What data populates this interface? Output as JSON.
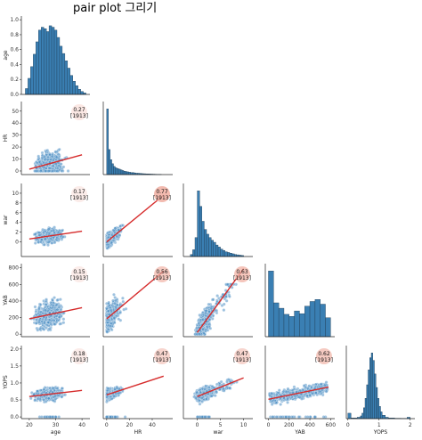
{
  "title": "pair plot 그리기",
  "colors": {
    "hist_fill": "#3a7fb3",
    "hist_edge": "#1e3c55",
    "point": "#4e8fc4",
    "point_edge": "#ffffff",
    "regline": "#d62b2b",
    "badge": "#f1b3a6",
    "spine": "#222222"
  },
  "chart_data": {
    "type": "scatter",
    "kind": "pairplot-lower",
    "variables": [
      "age",
      "HR",
      "war",
      "YAB",
      "YOPS"
    ],
    "axis_labels": [
      "age",
      "HR",
      "war",
      "YAB",
      "YOPS"
    ],
    "x_ranges": [
      [
        17,
        43
      ],
      [
        -3,
        58
      ],
      [
        -3,
        12
      ],
      [
        -30,
        640
      ],
      [
        -0.05,
        2.15
      ]
    ],
    "y_ranges": [
      [
        0,
        1.05
      ],
      [
        -3,
        58
      ],
      [
        -3,
        12
      ],
      [
        -30,
        850
      ],
      [
        -0.05,
        2.1
      ]
    ],
    "x_ticks": [
      [
        20,
        30,
        40
      ],
      [
        0,
        20,
        40
      ],
      [
        0,
        5,
        10
      ],
      [
        0,
        200,
        400,
        600
      ],
      [
        0,
        1,
        2
      ]
    ],
    "y_ticks": [
      [
        0.0,
        0.2,
        0.4,
        0.6,
        0.8,
        1.0
      ],
      [
        0,
        10,
        20,
        30,
        40,
        50
      ],
      [
        0,
        2,
        4,
        6,
        8,
        10
      ],
      [
        0,
        200,
        400,
        600,
        800
      ],
      [
        0.0,
        0.5,
        1.0,
        1.5,
        2.0
      ]
    ],
    "y_tick_labels": [
      [
        "0.0",
        "0.2",
        "0.4",
        "0.6",
        "0.8",
        "1.0"
      ],
      [
        "0",
        "10",
        "20",
        "30",
        "40",
        "50"
      ],
      [
        "0",
        "2",
        "4",
        "6",
        "8",
        "10"
      ],
      [
        "0",
        "200",
        "400",
        "600",
        "800"
      ],
      [
        "0.0",
        "0.5",
        "1.0",
        "1.5",
        "2.0"
      ]
    ],
    "histograms": [
      {
        "var": "age",
        "bins": [
          18.5,
          19.5,
          20.5,
          21.5,
          22.5,
          23.5,
          24.5,
          25.5,
          26.5,
          27.5,
          28.5,
          29.5,
          30.5,
          31.5,
          32.5,
          33.5,
          34.5,
          35.5,
          36.5,
          37.5,
          38.5,
          39.5,
          40.5,
          41.5
        ],
        "heights": [
          0.08,
          0.22,
          0.38,
          0.55,
          0.72,
          0.88,
          0.92,
          0.9,
          0.86,
          0.94,
          0.92,
          0.88,
          0.78,
          0.66,
          0.56,
          0.46,
          0.36,
          0.26,
          0.18,
          0.12,
          0.07,
          0.04,
          0.02
        ]
      },
      {
        "var": "HR",
        "bins": [
          0,
          1.5,
          3,
          4.5,
          6,
          7.5,
          9,
          10.5,
          12,
          13.5,
          15,
          16.5,
          18,
          19.5,
          21,
          22.5,
          24,
          25.5,
          27,
          28.5,
          30,
          31.5,
          33,
          34.5,
          36,
          37.5,
          39,
          40.5,
          42,
          43.5,
          45,
          46.5,
          48
        ],
        "heights": [
          0.97,
          0.37,
          0.22,
          0.16,
          0.12,
          0.1,
          0.09,
          0.08,
          0.07,
          0.06,
          0.05,
          0.045,
          0.04,
          0.035,
          0.03,
          0.03,
          0.025,
          0.02,
          0.02,
          0.018,
          0.015,
          0.013,
          0.012,
          0.01,
          0.01,
          0.008,
          0.007,
          0.006,
          0.005,
          0.004,
          0.004,
          0.003
        ]
      },
      {
        "var": "war",
        "bins": [
          -1.5,
          -1,
          -0.5,
          0,
          0.5,
          1,
          1.5,
          2,
          2.5,
          3,
          3.5,
          4,
          4.5,
          5,
          5.5,
          6,
          6.5,
          7,
          7.5,
          8,
          8.5,
          9,
          9.5,
          10
        ],
        "heights": [
          0.03,
          0.1,
          0.28,
          0.97,
          0.74,
          0.52,
          0.4,
          0.33,
          0.28,
          0.24,
          0.21,
          0.17,
          0.14,
          0.11,
          0.09,
          0.07,
          0.06,
          0.05,
          0.04,
          0.03,
          0.025,
          0.02,
          0.015
        ]
      },
      {
        "var": "YAB",
        "bins": [
          0,
          50,
          100,
          150,
          200,
          250,
          300,
          350,
          400,
          450,
          500,
          550,
          600
        ],
        "heights": [
          0.97,
          0.5,
          0.42,
          0.33,
          0.3,
          0.38,
          0.34,
          0.45,
          0.52,
          0.55,
          0.48,
          0.28
        ]
      },
      {
        "var": "YOPS",
        "bins": [
          0,
          0.1,
          0.2,
          0.3,
          0.4,
          0.45,
          0.5,
          0.55,
          0.6,
          0.65,
          0.7,
          0.75,
          0.8,
          0.85,
          0.9,
          0.95,
          1.0,
          1.05,
          1.1,
          1.2,
          1.3,
          1.5,
          1.7,
          1.9,
          2.0
        ],
        "heights": [
          0.08,
          0.01,
          0.01,
          0.02,
          0.04,
          0.08,
          0.16,
          0.3,
          0.5,
          0.72,
          0.9,
          0.97,
          0.86,
          0.66,
          0.46,
          0.3,
          0.18,
          0.1,
          0.05,
          0.02,
          0.01,
          0.005,
          0.003,
          0.02
        ]
      }
    ],
    "pairs": [
      {
        "row": 1,
        "col": 0,
        "x": "age",
        "y": "HR",
        "r": "0.27",
        "n": "[1913]",
        "fit": [
          [
            20,
            1.5
          ],
          [
            40,
            13.5
          ]
        ],
        "badge_alpha": 0.3
      },
      {
        "row": 2,
        "col": 0,
        "x": "age",
        "y": "war",
        "r": "0.17",
        "n": "[1913]",
        "fit": [
          [
            20,
            0.6
          ],
          [
            40,
            2.2
          ]
        ],
        "badge_alpha": 0.25
      },
      {
        "row": 2,
        "col": 1,
        "x": "HR",
        "y": "war",
        "r": "0.77",
        "n": "[1913]",
        "fit": [
          [
            0,
            0.0
          ],
          [
            50,
            9.6
          ]
        ],
        "badge_alpha": 0.9
      },
      {
        "row": 3,
        "col": 0,
        "x": "age",
        "y": "YAB",
        "r": "0.15",
        "n": "[1913]",
        "fit": [
          [
            20,
            185
          ],
          [
            40,
            320
          ]
        ],
        "badge_alpha": 0.25
      },
      {
        "row": 3,
        "col": 1,
        "x": "HR",
        "y": "YAB",
        "r": "0.56",
        "n": "[1913]",
        "fit": [
          [
            0,
            185
          ],
          [
            50,
            760
          ]
        ],
        "badge_alpha": 0.7
      },
      {
        "row": 3,
        "col": 2,
        "x": "war",
        "y": "YAB",
        "r": "0.63",
        "n": "[1913]",
        "fit": [
          [
            0,
            20
          ],
          [
            10,
            790
          ]
        ],
        "badge_alpha": 0.75
      },
      {
        "row": 4,
        "col": 0,
        "x": "age",
        "y": "YOPS",
        "r": "0.18",
        "n": "[1913]",
        "fit": [
          [
            20,
            0.6
          ],
          [
            40,
            0.78
          ]
        ],
        "badge_alpha": 0.25
      },
      {
        "row": 4,
        "col": 1,
        "x": "HR",
        "y": "YOPS",
        "r": "0.47",
        "n": "[1913]",
        "fit": [
          [
            0,
            0.65
          ],
          [
            50,
            1.2
          ]
        ],
        "badge_alpha": 0.55
      },
      {
        "row": 4,
        "col": 2,
        "x": "war",
        "y": "YOPS",
        "r": "0.47",
        "n": "[1913]",
        "fit": [
          [
            0,
            0.6
          ],
          [
            10,
            1.15
          ]
        ],
        "badge_alpha": 0.55
      },
      {
        "row": 4,
        "col": 3,
        "x": "YAB",
        "y": "YOPS",
        "r": "0.62",
        "n": "[1913]",
        "fit": [
          [
            0,
            0.52
          ],
          [
            580,
            0.88
          ]
        ],
        "badge_alpha": 0.7
      }
    ]
  }
}
